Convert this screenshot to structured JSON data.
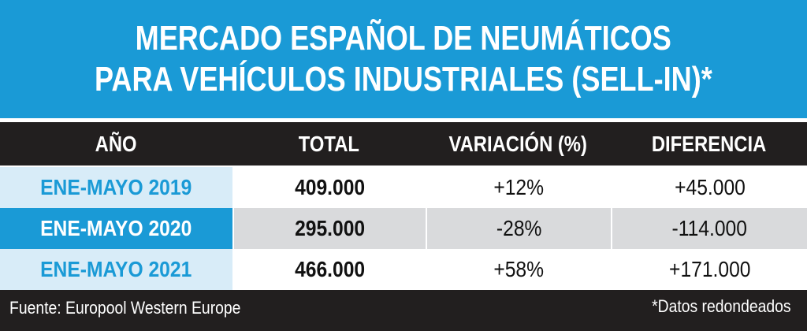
{
  "chart_data": {
    "type": "table",
    "title": [
      "MERCADO ESPAÑOL DE NEUMÁTICOS",
      "PARA VEHÍCULOS INDUSTRIALES (SELL-IN)*"
    ],
    "columns": [
      "AÑO",
      "TOTAL",
      "VARIACIÓN (%)",
      "DIFERENCIA"
    ],
    "rows": [
      {
        "year": "ENE-MAYO 2019",
        "total": "409.000",
        "variacion": "+12%",
        "diferencia": "+45.000"
      },
      {
        "year": "ENE-MAYO 2020",
        "total": "295.000",
        "variacion": "-28%",
        "diferencia": "-114.000"
      },
      {
        "year": "ENE-MAYO 2021",
        "total": "466.000",
        "variacion": "+58%",
        "diferencia": "+171.000"
      }
    ],
    "source": "Fuente: Europool Western Europe",
    "note": "*Datos redondeados"
  },
  "colors": {
    "accent": "#1a9ad6",
    "dark": "#221f1f",
    "light_blue": "#d8ecf8",
    "gray": "#d9dadc"
  }
}
